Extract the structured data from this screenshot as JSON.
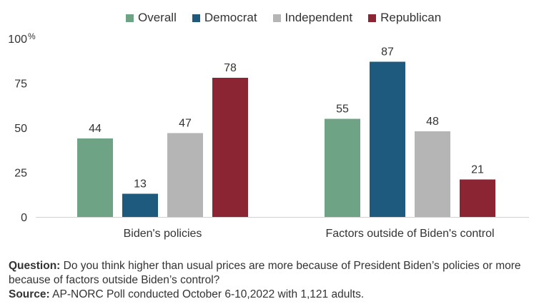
{
  "chart_data": {
    "type": "bar",
    "categories": [
      "Biden's policies",
      "Factors outside of Biden's control"
    ],
    "series": [
      {
        "name": "Overall",
        "color": "#6fa386",
        "values": [
          44,
          55
        ]
      },
      {
        "name": "Democrat",
        "color": "#1d5a7e",
        "values": [
          13,
          87
        ]
      },
      {
        "name": "Independent",
        "color": "#b5b5b5",
        "values": [
          47,
          48
        ]
      },
      {
        "name": "Republican",
        "color": "#8b2533",
        "values": [
          78,
          21
        ]
      }
    ],
    "ylim": [
      0,
      100
    ],
    "yticks": [
      "0",
      "25",
      "50",
      "75",
      "100"
    ],
    "y_unit": "%",
    "grid": false,
    "legend_position": "top"
  },
  "footer": {
    "question_label": "Question:",
    "question_text": " Do you think higher than usual prices are more because of President Biden’s policies or more because of factors outside Biden’s control?",
    "source_label": "Source:",
    "source_text": " AP-NORC Poll conducted October 6-10,2022 with 1,121 adults."
  }
}
